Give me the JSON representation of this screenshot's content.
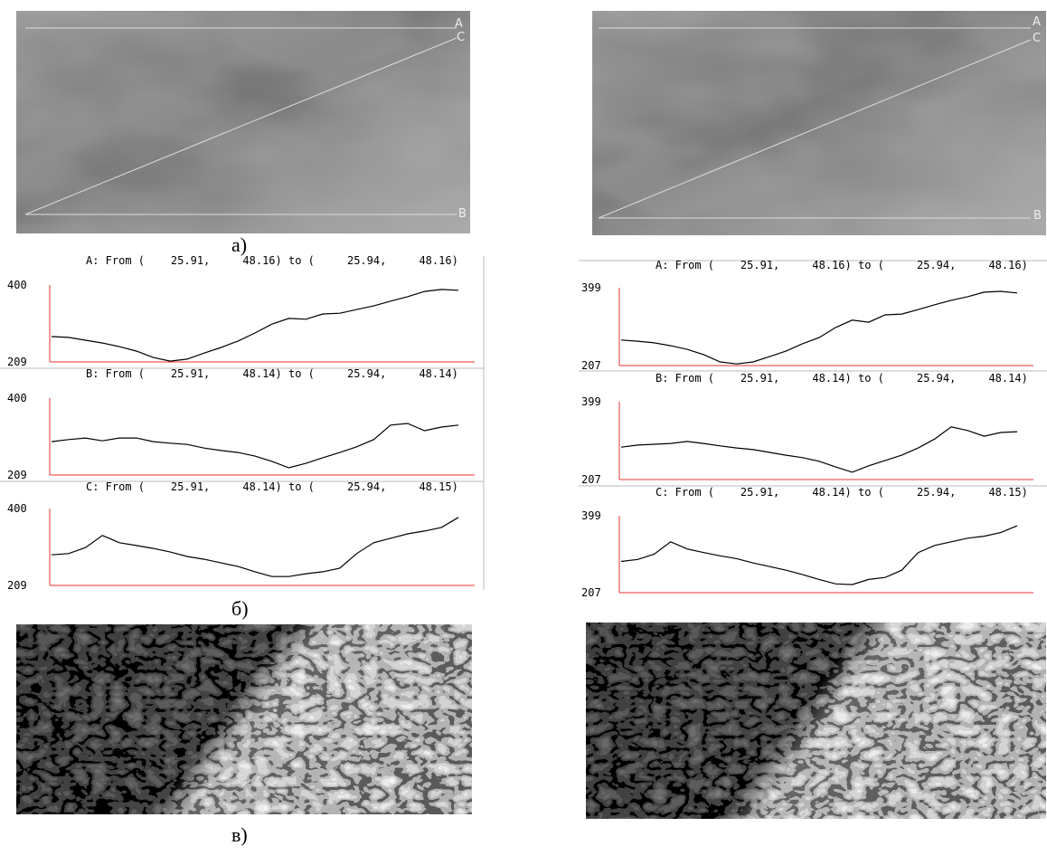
{
  "panel_labels": {
    "a": "а)",
    "b": "б)",
    "c": "в)"
  },
  "maps": [
    {
      "line_labels": [
        "A",
        "C",
        "B"
      ]
    },
    {
      "line_labels": [
        "A",
        "C",
        "B"
      ]
    }
  ],
  "chart_data": [
    {
      "type": "line",
      "title": "A: From (    25.91,     48.16) to (     25.94,     48.16)",
      "ylim": [
        209,
        400
      ],
      "yticks": [
        209,
        400
      ],
      "color": "#000000",
      "values": [
        272,
        270,
        263,
        256,
        247,
        236,
        220,
        211,
        216,
        231,
        245,
        261,
        281,
        303,
        317,
        315,
        328,
        330,
        339,
        348,
        360,
        371,
        384,
        389,
        387
      ]
    },
    {
      "type": "line",
      "title": "B: From (    25.91,     48.14) to (     25.94,     48.14)",
      "ylim": [
        209,
        400
      ],
      "yticks": [
        209,
        400
      ],
      "color": "#000000",
      "values": [
        292,
        297,
        301,
        294,
        301,
        301,
        292,
        288,
        285,
        276,
        270,
        265,
        256,
        243,
        227,
        238,
        252,
        265,
        279,
        297,
        333,
        337,
        319,
        328,
        333
      ]
    },
    {
      "type": "line",
      "title": "C: From (    25.91,     48.14) to (     25.94,     48.15)",
      "ylim": [
        209,
        400
      ],
      "yticks": [
        209,
        400
      ],
      "color": "#000000",
      "values": [
        285,
        288,
        303,
        333,
        315,
        308,
        301,
        292,
        281,
        274,
        265,
        256,
        243,
        231,
        231,
        238,
        243,
        252,
        288,
        315,
        326,
        337,
        344,
        353,
        378
      ]
    },
    {
      "type": "line",
      "title": "A: From (    25.91,     48.16) to (     25.94,     48.16)",
      "ylim": [
        207,
        399
      ],
      "yticks": [
        207,
        399
      ],
      "color": "#000000",
      "values": [
        270,
        267,
        263,
        256,
        247,
        234,
        216,
        211,
        216,
        229,
        243,
        261,
        276,
        301,
        319,
        314,
        332,
        334,
        345,
        357,
        368,
        377,
        388,
        390,
        386
      ]
    },
    {
      "type": "line",
      "title": "B: From (    25.91,     48.14) to (     25.94,     48.14)",
      "ylim": [
        207,
        399
      ],
      "yticks": [
        207,
        399
      ],
      "color": "#000000",
      "values": [
        287,
        292,
        294,
        296,
        301,
        296,
        290,
        285,
        281,
        274,
        267,
        261,
        252,
        238,
        225,
        241,
        254,
        267,
        285,
        307,
        337,
        328,
        314,
        323,
        325
      ]
    },
    {
      "type": "line",
      "title": "C: From (    25.91,     48.14) to (     25.94,     48.15)",
      "ylim": [
        207,
        399
      ],
      "yticks": [
        207,
        399
      ],
      "color": "#000000",
      "values": [
        285,
        290,
        303,
        334,
        316,
        307,
        299,
        292,
        281,
        272,
        263,
        252,
        240,
        229,
        227,
        240,
        245,
        263,
        307,
        325,
        334,
        343,
        348,
        357,
        374
      ]
    }
  ]
}
